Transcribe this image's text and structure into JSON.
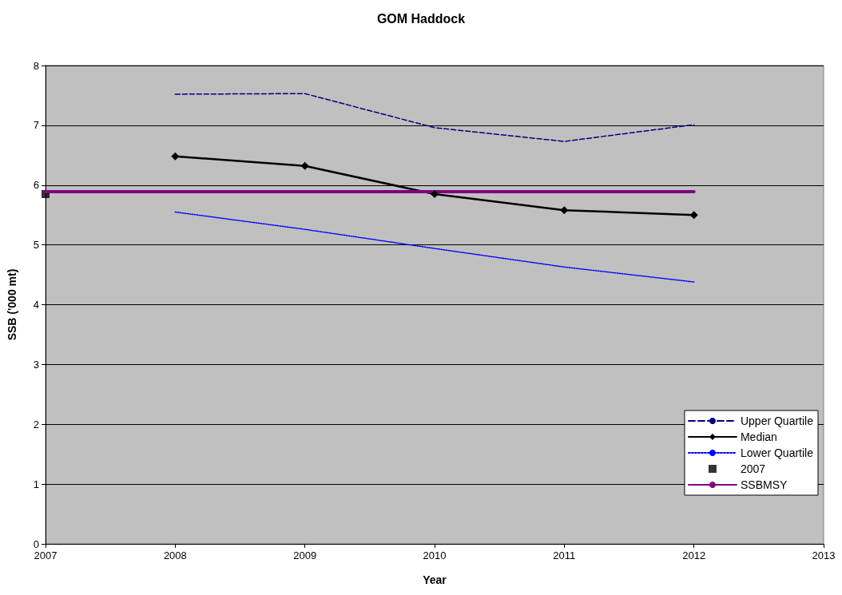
{
  "chart_data": {
    "type": "line",
    "title": "GOM Haddock",
    "xlabel": "Year",
    "ylabel": "SSB ('000 mt)",
    "xlim": [
      2007,
      2013
    ],
    "xticks": [
      2007,
      2008,
      2009,
      2010,
      2011,
      2012,
      2013
    ],
    "ylim": [
      0,
      8
    ],
    "yticks": [
      0,
      1,
      2,
      3,
      4,
      5,
      6,
      7,
      8
    ],
    "grid": "y",
    "legend": "bottom right",
    "series": [
      {
        "name": "Upper Quartile",
        "type": "line",
        "color": "#000080",
        "line_style": "dashed",
        "marker": "none",
        "x": [
          2008,
          2009,
          2010,
          2011,
          2012
        ],
        "values": [
          7.52,
          7.53,
          6.96,
          6.73,
          7.01
        ]
      },
      {
        "name": "Median",
        "type": "line",
        "color": "#000000",
        "line_style": "solid",
        "marker": "diamond",
        "x": [
          2008,
          2009,
          2010,
          2011,
          2012
        ],
        "values": [
          6.48,
          6.32,
          5.85,
          5.58,
          5.5
        ]
      },
      {
        "name": "Lower Quartile",
        "type": "line",
        "color": "#0000ff",
        "line_style": "dotted",
        "marker": "none",
        "x": [
          2008,
          2009,
          2010,
          2011,
          2012
        ],
        "values": [
          5.55,
          5.26,
          4.94,
          4.63,
          4.38
        ]
      },
      {
        "name": "2007",
        "type": "scatter",
        "color": "#000000",
        "marker": "square",
        "x": [
          2007
        ],
        "values": [
          5.85
        ]
      },
      {
        "name": "SSBMSY",
        "type": "line",
        "color": "#800080",
        "line_style": "solid",
        "marker": "none",
        "x": [
          2007,
          2012
        ],
        "values": [
          5.89,
          5.89
        ]
      }
    ]
  }
}
